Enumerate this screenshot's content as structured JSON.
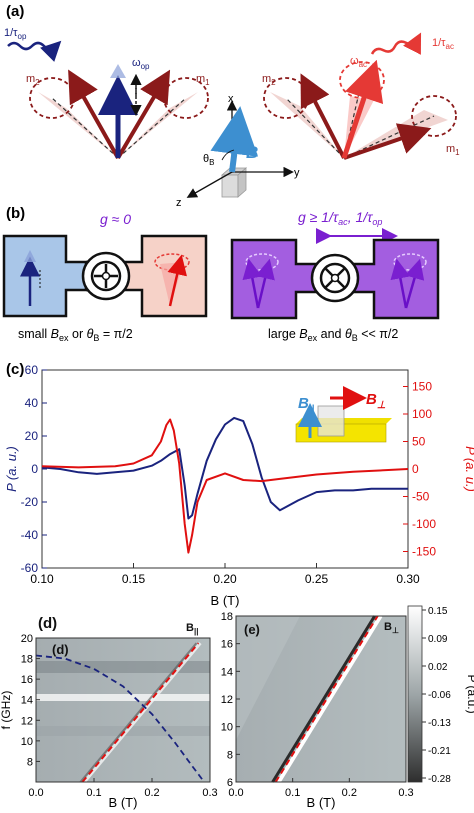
{
  "panel_a": {
    "label": "(a)",
    "rate_op": "1/τ",
    "rate_op_sub": "op",
    "rate_ac": "1/τ",
    "rate_ac_sub": "ac",
    "omega_op": "ω",
    "omega_op_sub": "op",
    "omega_ac": "ω",
    "omega_ac_sub": "ac",
    "m1": "m",
    "m1_sub": "1",
    "m2": "m",
    "m2_sub": "2",
    "axis_x": "x",
    "axis_y": "y",
    "axis_z": "z",
    "field": "B",
    "theta": "θ",
    "theta_sub": "B",
    "colors": {
      "optical": "#1a237e",
      "acoustic": "#e53935",
      "dark_red": "#8b1a1a",
      "field": "#3d8fd0"
    }
  },
  "panel_b": {
    "label": "(b)",
    "left_coupling": "g ≈ 0",
    "right_coupling": "g ≥ 1/τ",
    "right_coupling_sub1": "ac",
    "right_coupling_sep": ", 1/τ",
    "right_coupling_sub2": "op",
    "left_caption_1": "small ",
    "left_caption_B": "B",
    "left_caption_sub": "ex",
    "left_caption_2": " or  ",
    "left_caption_theta": "θ",
    "left_caption_theta_sub": "B",
    "left_caption_3": " = π/2",
    "right_caption_1": "large ",
    "right_caption_B": "B",
    "right_caption_sub": "ex",
    "right_caption_2": "  and  ",
    "right_caption_theta": "θ",
    "right_caption_theta_sub": "B",
    "right_caption_3": " << π/2",
    "colors": {
      "blue_box": "#a9c6e8",
      "pink_box": "#f6d2c8",
      "purple_box": "#a35ee0"
    }
  },
  "chart_c": {
    "label": "(c)",
    "type": "line",
    "xlabel": "B (T)",
    "ylabel_left": "P (a. u.)",
    "ylabel_right": "P (a. u.)",
    "xlim": [
      0.1,
      0.3
    ],
    "ylim_left": [
      -60,
      60
    ],
    "ylim_right": [
      -180,
      180
    ],
    "x_ticks": [
      "0.10",
      "0.15",
      "0.20",
      "0.25",
      "0.30"
    ],
    "y_ticks_left": [
      "60",
      "40",
      "20",
      "0",
      "-20",
      "-40",
      "-60"
    ],
    "y_ticks_right": [
      "150",
      "100",
      "50",
      "0",
      "-50",
      "-100",
      "-150"
    ],
    "legend_par": "B",
    "legend_par_sub": "||",
    "legend_perp": "B",
    "legend_perp_sub": "⊥",
    "series": [
      {
        "name": "B||",
        "color": "#1a237e",
        "axis": "left",
        "x": [
          0.1,
          0.11,
          0.12,
          0.13,
          0.14,
          0.15,
          0.16,
          0.165,
          0.17,
          0.175,
          0.178,
          0.18,
          0.182,
          0.185,
          0.19,
          0.195,
          0.2,
          0.205,
          0.21,
          0.215,
          0.22,
          0.225,
          0.23,
          0.24,
          0.25,
          0.26,
          0.27,
          0.28,
          0.29,
          0.3
        ],
        "y": [
          1,
          0,
          -2,
          -3,
          -2,
          -1,
          2,
          5,
          9,
          12,
          -10,
          -30,
          -28,
          -15,
          5,
          18,
          27,
          31,
          29,
          15,
          -5,
          -20,
          -25,
          -19,
          -14,
          -13,
          -13,
          -12,
          -12,
          -12
        ]
      },
      {
        "name": "B⊥",
        "color": "#e01010",
        "axis": "right",
        "x": [
          0.1,
          0.12,
          0.14,
          0.15,
          0.16,
          0.165,
          0.168,
          0.17,
          0.172,
          0.175,
          0.178,
          0.18,
          0.182,
          0.185,
          0.19,
          0.2,
          0.21,
          0.22,
          0.23,
          0.25,
          0.27,
          0.3
        ],
        "y": [
          5,
          3,
          5,
          10,
          25,
          50,
          80,
          90,
          70,
          10,
          -100,
          -152,
          -120,
          -60,
          -20,
          -8,
          -20,
          -22,
          -18,
          -10,
          -5,
          0
        ]
      }
    ]
  },
  "chart_d": {
    "label": "(d)",
    "type": "heatmap",
    "xlabel": "B (T)",
    "ylabel": "f (GHz)",
    "xlim": [
      0.0,
      0.3
    ],
    "ylim": [
      6,
      20
    ],
    "x_ticks": [
      "0.0",
      "0.1",
      "0.2",
      "0.3"
    ],
    "y_ticks": [
      "20",
      "18",
      "16",
      "14",
      "12",
      "10",
      "8"
    ],
    "corner": "B",
    "corner_sub": "||",
    "red_dashed": {
      "x": [
        0.08,
        0.28
      ],
      "y": [
        6,
        19.5
      ]
    },
    "blue_dashed_x": [
      0.0,
      0.05,
      0.1,
      0.15,
      0.2,
      0.24,
      0.27,
      0.29
    ],
    "blue_dashed_y": [
      18.3,
      18.0,
      17.0,
      15.3,
      12.6,
      9.8,
      7.5,
      6.0
    ]
  },
  "chart_e": {
    "label": "(e)",
    "type": "heatmap",
    "xlabel": "B (T)",
    "xlim": [
      0.0,
      0.3
    ],
    "ylim": [
      6,
      18
    ],
    "x_ticks": [
      "0.0",
      "0.1",
      "0.2",
      "0.3"
    ],
    "y_ticks": [
      "18",
      "16",
      "14",
      "12",
      "10",
      "8",
      "6"
    ],
    "corner": "B",
    "corner_sub": "⊥",
    "red_dashed": {
      "x": [
        0.07,
        0.25
      ],
      "y": [
        6,
        18
      ]
    },
    "colorbar_ticks": [
      "0.15",
      "0.09",
      "0.02",
      "-0.06",
      "-0.13",
      "-0.21",
      "-0.28"
    ],
    "colorbar_label": "P (a.u.)"
  }
}
